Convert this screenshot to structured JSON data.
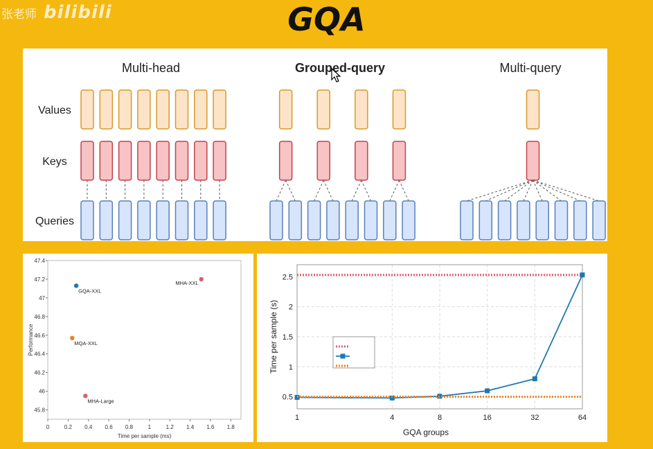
{
  "watermark": {
    "teacher": "张老师",
    "logo": "bilibili"
  },
  "title": "GQA",
  "diagram": {
    "columns": [
      "Multi-head",
      "Grouped-query",
      "Multi-query"
    ],
    "row_labels": [
      "Values",
      "Keys",
      "Queries"
    ],
    "query_count": 8,
    "kv_counts": [
      8,
      4,
      1
    ],
    "colors": {
      "value_fill": "#fde4c8",
      "value_stroke": "#d69a2b",
      "key_fill": "#f7c3c5",
      "key_stroke": "#c0434b",
      "query_fill": "#d6e5fb",
      "query_stroke": "#5b7fb8"
    }
  },
  "chart_data": [
    {
      "type": "scatter",
      "xlabel": "Time per sample (ms)",
      "ylabel": "Performance",
      "xlim": [
        0,
        1.9
      ],
      "ylim": [
        45.7,
        47.4
      ],
      "xticks": [
        "0",
        "0.2",
        "0.4",
        "0.6",
        "0.8",
        "1",
        "1.2",
        "1.4",
        "1.6",
        "1.8"
      ],
      "yticks": [
        "45.8",
        "46",
        "46.2",
        "46.4",
        "46.6",
        "46.8",
        "47",
        "47.2",
        "47.4"
      ],
      "points": [
        {
          "label": "GQA-XXL",
          "x": 0.28,
          "y": 47.13,
          "color": "#1f77b4"
        },
        {
          "label": "MHA-XXL",
          "x": 1.51,
          "y": 47.2,
          "color": "#d9606f"
        },
        {
          "label": "MQA-XXL",
          "x": 0.24,
          "y": 46.57,
          "color": "#ee8220"
        },
        {
          "label": "MHA-Large",
          "x": 0.37,
          "y": 45.95,
          "color": "#d9606f"
        }
      ]
    },
    {
      "type": "line",
      "xscale": "log2",
      "xlabel": "GQA groups",
      "ylabel": "Time per sample (s)",
      "xticks": [
        "1",
        "4",
        "8",
        "16",
        "32",
        "64"
      ],
      "yticks": [
        "0.5",
        "1",
        "1.5",
        "2",
        "2.5"
      ],
      "xlim": [
        1,
        64
      ],
      "ylim": [
        0.3,
        2.7
      ],
      "grid": true,
      "legend": "center-left",
      "series": [
        {
          "x": [
            1,
            64
          ],
          "values": [
            2.53,
            2.53
          ],
          "color": "#d9606f",
          "style": "dotted"
        },
        {
          "x": [
            1,
            4,
            8,
            16,
            32,
            64
          ],
          "values": [
            0.49,
            0.48,
            0.51,
            0.6,
            0.8,
            2.53
          ],
          "color": "#1f77b4",
          "style": "solid"
        },
        {
          "x": [
            1,
            64
          ],
          "values": [
            0.5,
            0.5
          ],
          "color": "#ee8220",
          "style": "dotted"
        }
      ]
    }
  ]
}
